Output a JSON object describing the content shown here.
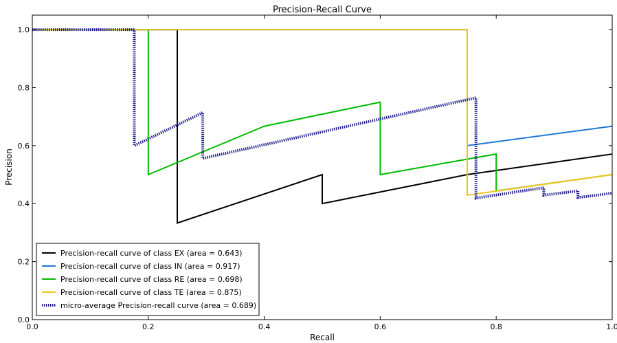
{
  "chart_data": {
    "type": "line",
    "title": "Precision-Recall Curve",
    "xlabel": "Recall",
    "ylabel": "Precision",
    "xlim": [
      0.0,
      1.0
    ],
    "ylim": [
      0.0,
      1.05
    ],
    "x_ticks": [
      "0.0",
      "0.2",
      "0.4",
      "0.6",
      "0.8",
      "1.0"
    ],
    "y_ticks": [
      "0.0",
      "0.2",
      "0.4",
      "0.6",
      "0.8",
      "1.0"
    ],
    "grid": false,
    "legend_position": "lower-left",
    "series": [
      {
        "name": "Precision-recall curve of class EX (area = 0.643)",
        "color": "#000000",
        "style": "solid",
        "x": [
          0.0,
          0.25,
          0.25,
          0.5,
          0.5,
          0.75,
          1.0
        ],
        "y": [
          1.0,
          1.0,
          0.333,
          0.5,
          0.4,
          0.5,
          0.571
        ]
      },
      {
        "name": "Precision-recall curve of class IN (area = 0.917)",
        "color": "#1f77d4",
        "style": "solid",
        "x": [
          0.0,
          0.75,
          0.75,
          1.0
        ],
        "y": [
          1.0,
          1.0,
          0.6,
          0.667
        ]
      },
      {
        "name": "Precision-recall curve of class RE (area = 0.698)",
        "color": "#00bb00",
        "style": "solid",
        "x": [
          0.0,
          0.2,
          0.2,
          0.4,
          0.6,
          0.6,
          0.8,
          0.8,
          1.0
        ],
        "y": [
          1.0,
          1.0,
          0.5,
          0.667,
          0.75,
          0.5,
          0.571,
          0.444,
          0.5
        ]
      },
      {
        "name": "Precision-recall curve of class TE (area = 0.875)",
        "color": "#f2c318",
        "style": "solid",
        "x": [
          0.0,
          0.75,
          0.75,
          1.0
        ],
        "y": [
          1.0,
          1.0,
          0.429,
          0.5
        ]
      },
      {
        "name": "micro-average Precision-recall curve (area = 0.689)",
        "color": "#1a1a8c",
        "style": "dotted",
        "x": [
          0.0,
          0.176,
          0.176,
          0.294,
          0.294,
          0.765,
          0.765,
          0.882,
          0.882,
          0.941,
          0.941,
          1.0
        ],
        "y": [
          1.0,
          1.0,
          0.6,
          0.714,
          0.556,
          0.765,
          0.419,
          0.455,
          0.429,
          0.444,
          0.421,
          0.436
        ]
      }
    ]
  }
}
